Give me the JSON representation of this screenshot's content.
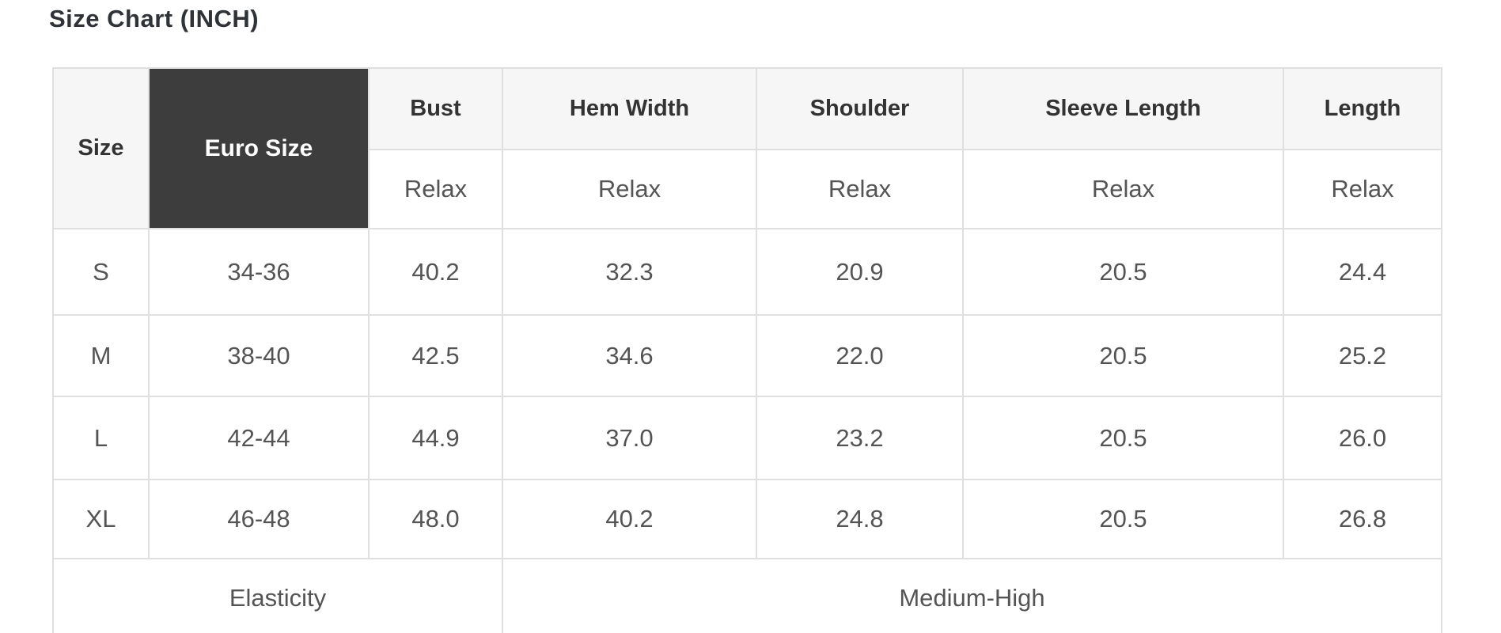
{
  "title": "Size Chart (INCH)",
  "chart_data": {
    "type": "table",
    "title": "Size Chart (INCH)",
    "unit": "INCH",
    "columns": [
      "Size",
      "Euro Size",
      "Bust",
      "Hem Width",
      "Shoulder",
      "Sleeve Length",
      "Length"
    ],
    "fit_row": {
      "values": [
        "Relax",
        "Relax",
        "Relax",
        "Relax",
        "Relax"
      ]
    },
    "rows": [
      [
        "S",
        "34-36",
        "40.2",
        "32.3",
        "20.9",
        "20.5",
        "24.4"
      ],
      [
        "M",
        "38-40",
        "42.5",
        "34.6",
        "22.0",
        "20.5",
        "25.2"
      ],
      [
        "L",
        "42-44",
        "44.9",
        "37.0",
        "23.2",
        "20.5",
        "26.0"
      ],
      [
        "XL",
        "46-48",
        "48.0",
        "40.2",
        "24.8",
        "20.5",
        "26.8"
      ]
    ],
    "footer_row": [
      "Elasticity",
      "Medium-High"
    ]
  },
  "colors": {
    "euro_header_bg": "#3d3d3d",
    "euro_header_text": "#ffffff",
    "header_bg": "#f6f6f6",
    "header_text": "#333333",
    "body_text": "#555555",
    "border": "#dfdfdf",
    "page_bg": "#ffffff"
  }
}
